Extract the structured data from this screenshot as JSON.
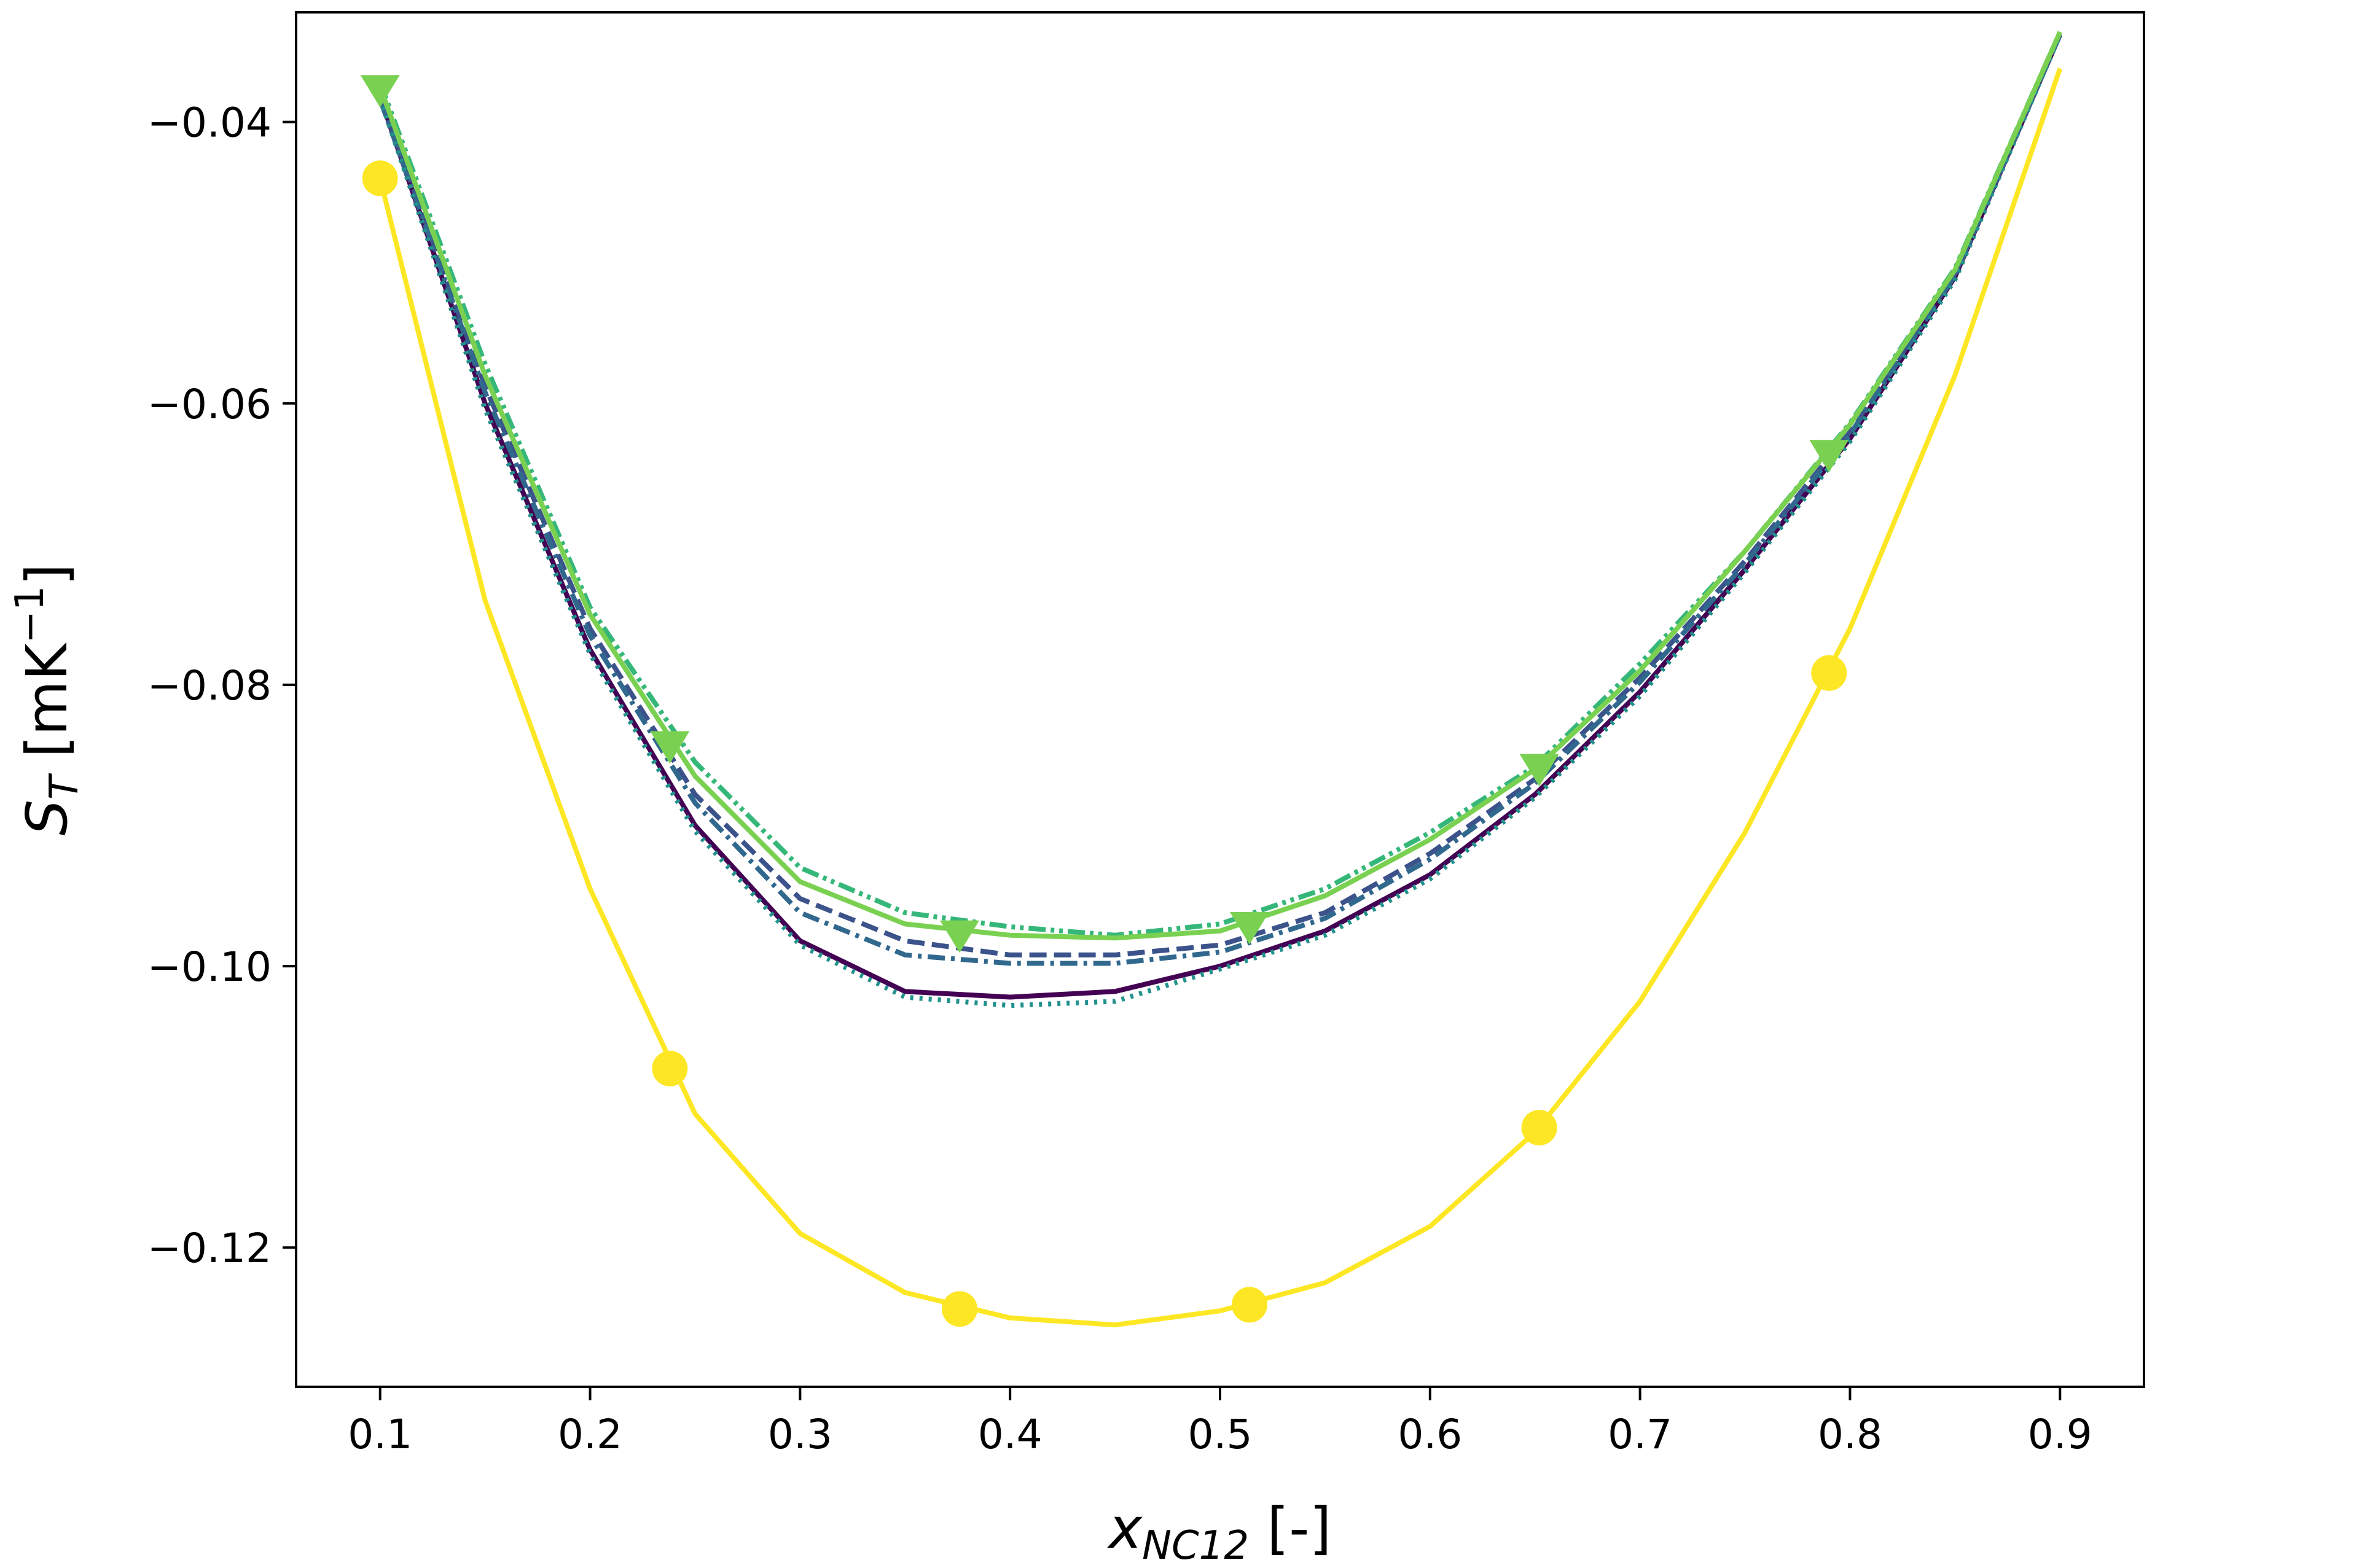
{
  "chart_data": {
    "type": "line",
    "title": "",
    "xlabel": "x",
    "xlabel_sub": "NC12",
    "xlabel_suffix": " [-]",
    "ylabel": "S",
    "ylabel_sub": "T",
    "ylabel_suffix": " [mK",
    "ylabel_sup": "−1",
    "ylabel_close": "]",
    "xlim": [
      0.06,
      0.94
    ],
    "ylim": [
      -0.1299,
      -0.0322
    ],
    "xticks": [
      0.1,
      0.2,
      0.3,
      0.4,
      0.5,
      0.6,
      0.7,
      0.8,
      0.9
    ],
    "xtick_labels": [
      "0.1",
      "0.2",
      "0.3",
      "0.4",
      "0.5",
      "0.6",
      "0.7",
      "0.8",
      "0.9"
    ],
    "yticks": [
      -0.04,
      -0.06,
      -0.08,
      -0.1,
      -0.12
    ],
    "ytick_labels": [
      "−0.04",
      "−0.06",
      "−0.08",
      "−0.10",
      "−0.12"
    ],
    "grid": false,
    "x": [
      0.1,
      0.15,
      0.2,
      0.25,
      0.3,
      0.35,
      0.4,
      0.45,
      0.5,
      0.55,
      0.6,
      0.65,
      0.7,
      0.75,
      0.8,
      0.85,
      0.9
    ],
    "series": [
      {
        "color": "#440154",
        "style": "solid",
        "values": [
          -0.0382,
          -0.06,
          -0.0775,
          -0.09,
          -0.0982,
          -0.1018,
          -0.1022,
          -0.1018,
          -0.1,
          -0.0975,
          -0.0935,
          -0.0878,
          -0.0805,
          -0.0718,
          -0.0625,
          -0.051,
          -0.0338
        ]
      },
      {
        "color": "#3b528b",
        "style": "dashed",
        "values": [
          -0.0382,
          -0.0588,
          -0.076,
          -0.0878,
          -0.0952,
          -0.0982,
          -0.0992,
          -0.0992,
          -0.0985,
          -0.0962,
          -0.092,
          -0.0867,
          -0.0795,
          -0.0712,
          -0.062,
          -0.0508,
          -0.0338
        ]
      },
      {
        "color": "#31688e",
        "style": "dashdot",
        "values": [
          -0.0384,
          -0.0592,
          -0.0765,
          -0.0884,
          -0.0962,
          -0.0992,
          -0.0998,
          -0.0998,
          -0.099,
          -0.0966,
          -0.0924,
          -0.087,
          -0.0798,
          -0.0714,
          -0.0622,
          -0.0509,
          -0.0338
        ]
      },
      {
        "color": "#21918c",
        "style": "dotted",
        "values": [
          -0.0383,
          -0.0604,
          -0.0778,
          -0.0904,
          -0.0985,
          -0.1022,
          -0.1028,
          -0.1025,
          -0.1002,
          -0.0978,
          -0.0938,
          -0.088,
          -0.0808,
          -0.072,
          -0.0627,
          -0.0512,
          -0.0338
        ]
      },
      {
        "color": "#35b779",
        "style": "dashdotdot",
        "values": [
          -0.0372,
          -0.0572,
          -0.0745,
          -0.0855,
          -0.093,
          -0.0962,
          -0.0972,
          -0.0978,
          -0.097,
          -0.0945,
          -0.0905,
          -0.0858,
          -0.0785,
          -0.0705,
          -0.0614,
          -0.0504,
          -0.0336
        ]
      },
      {
        "color": "#7ad151",
        "style": "solid",
        "marker": "triangle-down",
        "marker_x": [
          0.1,
          0.238,
          0.376,
          0.514,
          0.652,
          0.79
        ],
        "values": [
          -0.0375,
          -0.058,
          -0.075,
          -0.0865,
          -0.094,
          -0.097,
          -0.0978,
          -0.098,
          -0.0975,
          -0.095,
          -0.091,
          -0.086,
          -0.079,
          -0.0705,
          -0.0615,
          -0.0505,
          -0.0336
        ]
      },
      {
        "color": "#fde725",
        "style": "solid",
        "marker": "circle",
        "marker_x": [
          0.1,
          0.238,
          0.376,
          0.514,
          0.652,
          0.79
        ],
        "values": [
          -0.044,
          -0.074,
          -0.0945,
          -0.1105,
          -0.119,
          -0.1232,
          -0.125,
          -0.1255,
          -0.1245,
          -0.1225,
          -0.1185,
          -0.1118,
          -0.1025,
          -0.0905,
          -0.076,
          -0.058,
          -0.0362
        ]
      }
    ]
  }
}
